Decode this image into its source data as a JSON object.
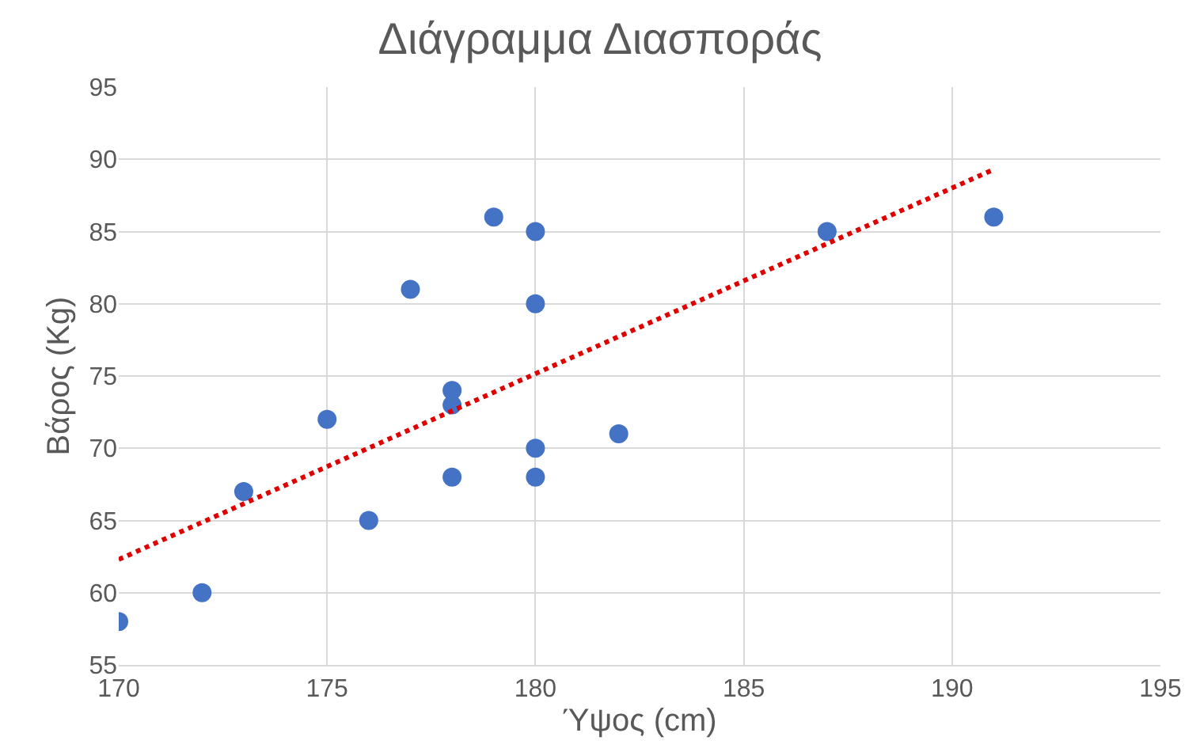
{
  "chart_data": {
    "type": "scatter",
    "title": "Διάγραμμα Διασποράς",
    "xlabel": "Ύψος (cm)",
    "ylabel": "Βάρος (Kg)",
    "series": [
      {
        "color": "#4472c4",
        "x": [
          170,
          172,
          173,
          175,
          176,
          177,
          178,
          178,
          178,
          179,
          180,
          180,
          180,
          180,
          182,
          187,
          191
        ],
        "values": [
          58,
          60,
          67,
          72,
          65,
          81,
          74,
          73,
          68,
          86,
          85,
          80,
          70,
          68,
          71,
          85,
          86
        ],
        "marker": "circle"
      },
      {
        "type": "line",
        "color": "#e00000",
        "x": [
          170,
          191
        ],
        "values": [
          62.3,
          89.3
        ],
        "line_style": "dotted",
        "marker": "none"
      }
    ],
    "xlim": [
      170,
      195
    ],
    "xticks": [
      170,
      175,
      180,
      185,
      190,
      195
    ],
    "ylim": [
      55,
      95
    ],
    "yticks": [
      55,
      60,
      65,
      70,
      75,
      80,
      85,
      90,
      95
    ],
    "grid": true,
    "legend": false
  }
}
